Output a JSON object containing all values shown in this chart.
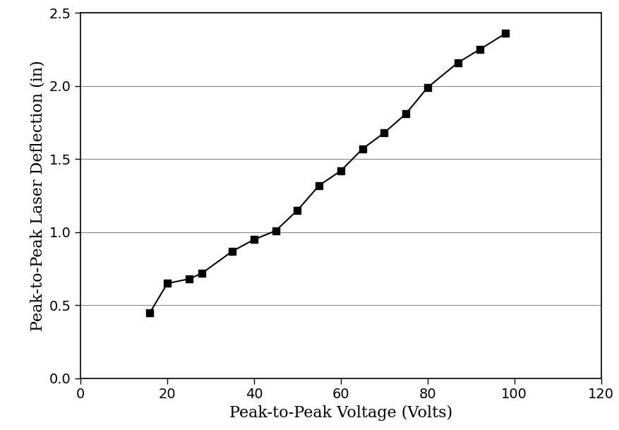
{
  "x": [
    16,
    20,
    25,
    28,
    35,
    40,
    45,
    50,
    55,
    60,
    65,
    70,
    75,
    80,
    87,
    92,
    98
  ],
  "y": [
    0.45,
    0.65,
    0.68,
    0.72,
    0.87,
    0.95,
    1.01,
    1.15,
    1.32,
    1.42,
    1.57,
    1.68,
    1.81,
    1.99,
    2.16,
    2.25,
    2.36
  ],
  "xlabel": "Peak-to-Peak Voltage (Volts)",
  "ylabel": "Peak-to-Peak Laser Deflection (in)",
  "xlim": [
    0,
    120
  ],
  "ylim": [
    0,
    2.5
  ],
  "xticks": [
    0,
    20,
    40,
    60,
    80,
    100,
    120
  ],
  "yticks": [
    0,
    0.5,
    1.0,
    1.5,
    2.0,
    2.5
  ],
  "line_color": "#000000",
  "marker": "s",
  "marker_color": "#000000",
  "marker_size": 7,
  "linewidth": 1.5,
  "grid_color": "#888888",
  "background_color": "#ffffff",
  "border_color": "#000000",
  "font_family": "serif",
  "tick_labelsize": 14,
  "axis_labelsize": 16
}
